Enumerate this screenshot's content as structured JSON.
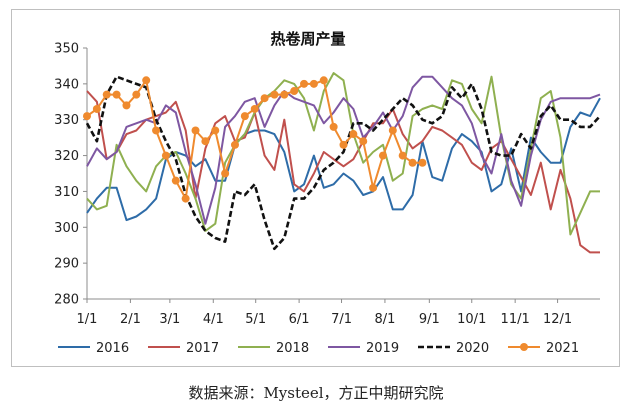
{
  "chart_data": {
    "type": "line",
    "title": "热卷周产量",
    "xlabel": "",
    "ylabel": "",
    "ylim": [
      280,
      350
    ],
    "yticks": [
      280,
      290,
      300,
      310,
      320,
      330,
      340,
      350
    ],
    "x_unit": "week",
    "xlim": [
      1,
      53
    ],
    "xticks": [
      {
        "label": "1/1",
        "x": 1
      },
      {
        "label": "2/1",
        "x": 5.4
      },
      {
        "label": "3/1",
        "x": 9.4
      },
      {
        "label": "4/1",
        "x": 13.8
      },
      {
        "label": "5/1",
        "x": 18.1
      },
      {
        "label": "6/1",
        "x": 22.5
      },
      {
        "label": "7/1",
        "x": 26.8
      },
      {
        "label": "8/1",
        "x": 31.2
      },
      {
        "label": "9/1",
        "x": 35.7
      },
      {
        "label": "10/1",
        "x": 40.0
      },
      {
        "label": "11/1",
        "x": 44.4
      },
      {
        "label": "12/1",
        "x": 48.7
      }
    ],
    "grid": false,
    "legend": "bottom",
    "series": [
      {
        "name": "2016",
        "color": "#2e6ca8",
        "style": "solid",
        "marker": "none",
        "x": [
          1,
          2,
          3,
          4,
          5,
          6,
          7,
          8,
          9,
          10,
          11,
          12,
          13,
          14,
          15,
          16,
          17,
          18,
          19,
          20,
          21,
          22,
          23,
          24,
          25,
          26,
          27,
          28,
          29,
          30,
          31,
          32,
          33,
          34,
          35,
          36,
          37,
          38,
          39,
          40,
          41,
          42,
          43,
          44,
          45,
          46,
          47,
          48,
          49,
          50,
          51,
          52,
          53
        ],
        "values": [
          304,
          308,
          311,
          311,
          302,
          303,
          305,
          308,
          319,
          321,
          320,
          317,
          319,
          313,
          313,
          323,
          326,
          327,
          327,
          326,
          321,
          310,
          312,
          320,
          311,
          312,
          315,
          313,
          309,
          310,
          314,
          305,
          305,
          309,
          324,
          314,
          313,
          322,
          326,
          324,
          321,
          310,
          312,
          322,
          310,
          325,
          321,
          318,
          318,
          328,
          332,
          331,
          336
        ]
      },
      {
        "name": "2017",
        "color": "#c0504d",
        "style": "solid",
        "marker": "none",
        "x": [
          1,
          2,
          3,
          4,
          5,
          6,
          7,
          8,
          9,
          10,
          11,
          12,
          13,
          14,
          15,
          16,
          17,
          18,
          19,
          20,
          21,
          22,
          23,
          24,
          25,
          26,
          27,
          28,
          29,
          30,
          31,
          32,
          33,
          34,
          35,
          36,
          37,
          38,
          39,
          40,
          41,
          42,
          43,
          44,
          45,
          46,
          47,
          48,
          49,
          50,
          51,
          52,
          53
        ],
        "values": [
          338,
          335,
          319,
          321,
          326,
          327,
          330,
          331,
          332,
          335,
          327,
          308,
          322,
          329,
          331,
          324,
          325,
          332,
          320,
          316,
          330,
          312,
          310,
          315,
          321,
          319,
          317,
          319,
          324,
          329,
          329,
          333,
          326,
          322,
          324,
          328,
          327,
          325,
          323,
          318,
          316,
          322,
          324,
          319,
          314,
          309,
          318,
          305,
          316,
          308,
          295,
          293,
          293
        ]
      },
      {
        "name": "2018",
        "color": "#8fb050",
        "style": "solid",
        "marker": "none",
        "x": [
          1,
          2,
          3,
          4,
          5,
          6,
          7,
          8,
          9,
          10,
          11,
          12,
          13,
          14,
          15,
          16,
          17,
          18,
          19,
          20,
          21,
          22,
          23,
          24,
          25,
          26,
          27,
          28,
          29,
          30,
          31,
          32,
          33,
          34,
          35,
          36,
          37,
          38,
          39,
          40,
          41,
          42,
          43,
          44,
          45,
          46,
          47,
          48,
          49,
          50,
          51,
          52,
          53
        ],
        "values": [
          308,
          305,
          306,
          323,
          317,
          313,
          310,
          317,
          320,
          321,
          315,
          308,
          299,
          301,
          318,
          323,
          326,
          332,
          336,
          338,
          341,
          340,
          336,
          327,
          338,
          343,
          341,
          326,
          318,
          321,
          323,
          313,
          315,
          331,
          333,
          334,
          333,
          341,
          340,
          333,
          329,
          342,
          325,
          312,
          308,
          322,
          336,
          338,
          325,
          298,
          304,
          310,
          310
        ]
      },
      {
        "name": "2019",
        "color": "#7e57a2",
        "style": "solid",
        "marker": "none",
        "x": [
          1,
          2,
          3,
          4,
          5,
          6,
          7,
          8,
          9,
          10,
          11,
          12,
          13,
          14,
          15,
          16,
          17,
          18,
          19,
          20,
          21,
          22,
          23,
          24,
          25,
          26,
          27,
          28,
          29,
          30,
          31,
          32,
          33,
          34,
          35,
          36,
          37,
          38,
          39,
          40,
          41,
          42,
          43,
          44,
          45,
          46,
          47,
          48,
          49,
          50,
          51,
          52,
          53
        ],
        "values": [
          317,
          322,
          319,
          321,
          328,
          329,
          330,
          329,
          334,
          332,
          321,
          312,
          301,
          311,
          328,
          331,
          335,
          336,
          328,
          334,
          338,
          336,
          335,
          334,
          329,
          332,
          336,
          333,
          325,
          328,
          332,
          327,
          331,
          339,
          342,
          342,
          339,
          336,
          334,
          329,
          320,
          315,
          326,
          313,
          306,
          320,
          330,
          335,
          336,
          336,
          336,
          336,
          337
        ]
      },
      {
        "name": "2020",
        "color": "#111111",
        "style": "dashed",
        "marker": "none",
        "x": [
          1,
          2,
          3,
          4,
          5,
          6,
          7,
          8,
          9,
          10,
          11,
          12,
          13,
          14,
          15,
          16,
          17,
          18,
          19,
          20,
          21,
          22,
          23,
          24,
          25,
          26,
          27,
          28,
          29,
          30,
          31,
          32,
          33,
          34,
          35,
          36,
          37,
          38,
          39,
          40,
          41,
          42,
          43,
          44,
          45,
          46,
          47,
          48,
          49,
          50,
          51,
          52,
          53
        ],
        "values": [
          329,
          324,
          337,
          342,
          341,
          340,
          339,
          330,
          324,
          319,
          309,
          303,
          299,
          297,
          296,
          310,
          309,
          312,
          302,
          294,
          297,
          308,
          308,
          311,
          316,
          318,
          321,
          329,
          329,
          327,
          330,
          333,
          336,
          334,
          330,
          329,
          331,
          339,
          336,
          340,
          333,
          321,
          320,
          320,
          326,
          322,
          331,
          334,
          330,
          330,
          328,
          328,
          331
        ]
      },
      {
        "name": "2021",
        "color": "#ef8a2e",
        "style": "solid",
        "marker": "circle",
        "x": [
          1,
          2,
          3,
          4,
          5,
          6,
          7,
          8,
          9,
          10,
          11,
          12,
          13,
          14,
          15,
          16,
          17,
          18,
          19,
          20,
          21,
          22,
          23,
          24,
          25,
          26,
          27,
          28,
          29,
          30,
          31,
          32,
          33,
          34,
          35
        ],
        "values": [
          331,
          333,
          337,
          337,
          334,
          337,
          341,
          327,
          320,
          313,
          308,
          327,
          324,
          327,
          315,
          323,
          331,
          333,
          336,
          337,
          337,
          338,
          340,
          340,
          341,
          328,
          323,
          326,
          324,
          311,
          320,
          327,
          320,
          318,
          318
        ]
      }
    ]
  },
  "source_note": "数据来源：Mysteel，方正中期研究院"
}
